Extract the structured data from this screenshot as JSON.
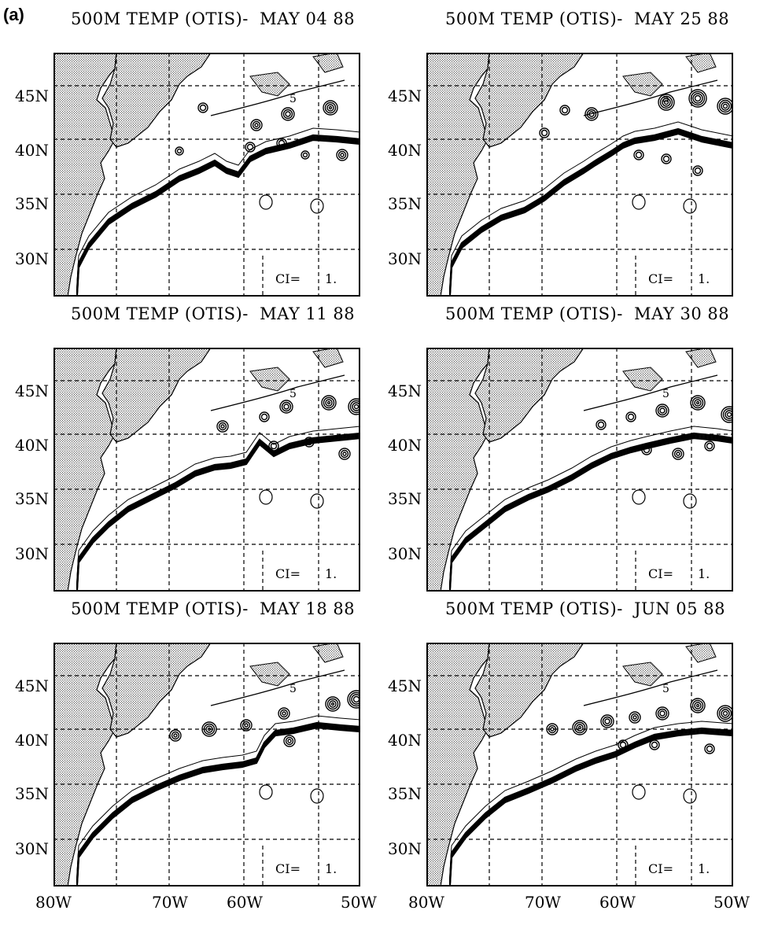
{
  "figure_label": "(a)",
  "panels": [
    {
      "title": "500M TEMP (OTIS)-  MAY 04 88",
      "ci_label": "CI=",
      "ci_value": "1.",
      "contour_label": "5"
    },
    {
      "title": "500M TEMP (OTIS)-  MAY 25 88",
      "ci_label": "CI=",
      "ci_value": "1.",
      "contour_label": "5"
    },
    {
      "title": "500M TEMP (OTIS)-  MAY 11 88",
      "ci_label": "CI=",
      "ci_value": "1.",
      "contour_label": "5"
    },
    {
      "title": "500M TEMP (OTIS)-  MAY 30 88",
      "ci_label": "CI=",
      "ci_value": "1.",
      "contour_label": "5"
    },
    {
      "title": "500M TEMP (OTIS)-  MAY 18 88",
      "ci_label": "CI=",
      "ci_value": "1.",
      "contour_label": "5"
    },
    {
      "title": "500M TEMP (OTIS)-  JUN 05 88",
      "ci_label": "CI=",
      "ci_value": "1.",
      "contour_label": "5"
    }
  ],
  "lat_labels": [
    "45N",
    "40N",
    "35N",
    "30N"
  ],
  "lon_labels": [
    "80W",
    "70W",
    "60W",
    "50W"
  ],
  "colors": {
    "land": "#b8b8b8",
    "contour": "#000000"
  }
}
